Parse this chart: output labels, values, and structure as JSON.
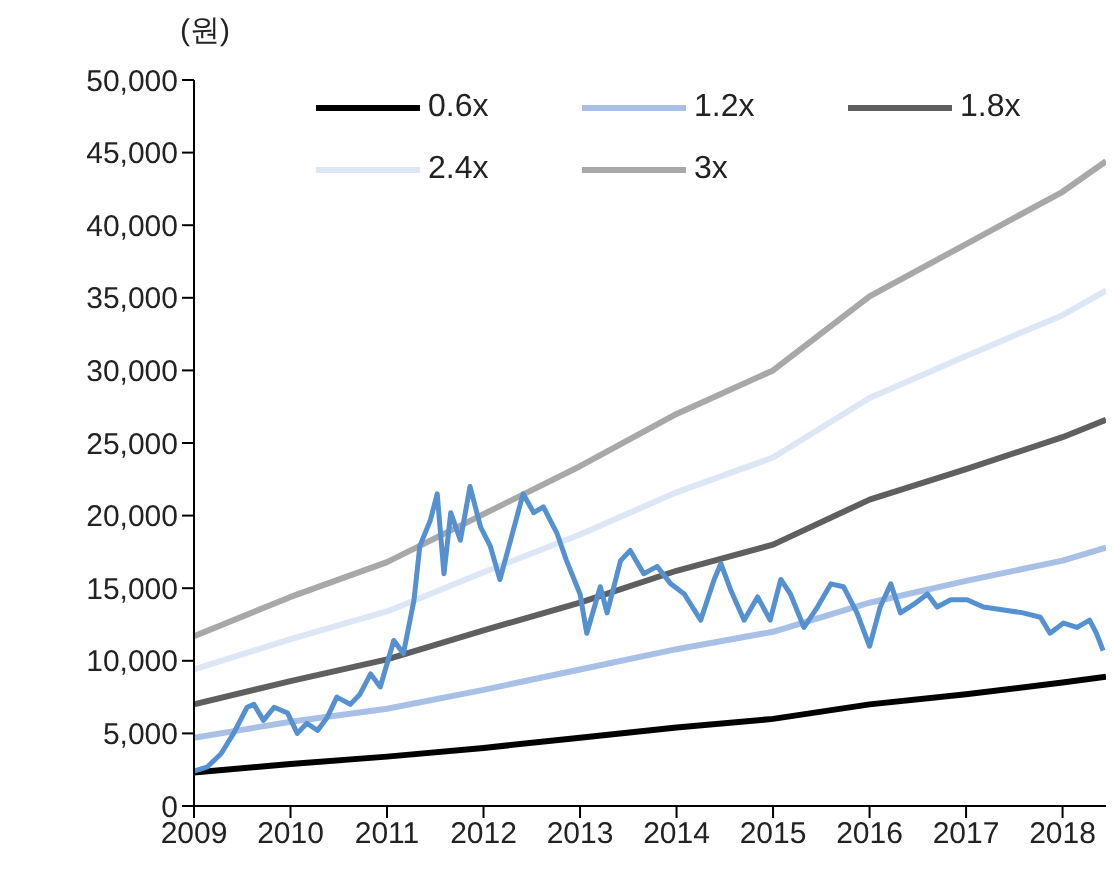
{
  "chart_data": {
    "type": "line",
    "ylabel": "(원)",
    "xlim": [
      2009,
      2018.45
    ],
    "xticks": [
      2009,
      2010,
      2011,
      2012,
      2013,
      2014,
      2015,
      2016,
      2017,
      2018
    ],
    "ylim": [
      0,
      50000
    ],
    "yticks": [
      {
        "value": 0,
        "label": "0"
      },
      {
        "value": 5000,
        "label": "5,000"
      },
      {
        "value": 10000,
        "label": "10,000"
      },
      {
        "value": 15000,
        "label": "15,000"
      },
      {
        "value": 20000,
        "label": "20,000"
      },
      {
        "value": 25000,
        "label": "25,000"
      },
      {
        "value": 30000,
        "label": "30,000"
      },
      {
        "value": 35000,
        "label": "35,000"
      },
      {
        "value": 40000,
        "label": "40,000"
      },
      {
        "value": 45000,
        "label": "45,000"
      },
      {
        "value": 50000,
        "label": "50,000"
      }
    ],
    "grid": false,
    "legend": "top right",
    "marker": "none",
    "x": [
      2009,
      2010,
      2011,
      2012,
      2013,
      2014,
      2015,
      2016,
      2017,
      2018,
      2018.45
    ],
    "series": [
      {
        "name": "0.6x",
        "color": "#000000",
        "values": [
          2300,
          2900,
          3400,
          4000,
          4700,
          5400,
          6000,
          7000,
          7700,
          8500,
          8900
        ]
      },
      {
        "name": "1.2x",
        "color": "#a9c0e6",
        "values": [
          4700,
          5800,
          6700,
          8000,
          9400,
          10800,
          12000,
          14000,
          15500,
          16900,
          17800
        ]
      },
      {
        "name": "1.8x",
        "color": "#5f5f5f",
        "values": [
          7000,
          8600,
          10100,
          12100,
          14000,
          16200,
          18000,
          21100,
          23200,
          25400,
          26600
        ]
      },
      {
        "name": "2.4x",
        "color": "#dce6f5",
        "values": [
          9400,
          11500,
          13400,
          16100,
          18700,
          21600,
          24000,
          28100,
          31000,
          33800,
          35500
        ]
      },
      {
        "name": "3x",
        "color": "#a8a8a8",
        "values": [
          11700,
          14400,
          16800,
          20100,
          23400,
          27000,
          30000,
          35100,
          38700,
          42300,
          44400
        ]
      },
      {
        "color": "#5590d0",
        "x": [
          2009,
          2009.14,
          2009.28,
          2009.41,
          2009.55,
          2009.62,
          2009.72,
          2009.83,
          2009.97,
          2010.07,
          2010.17,
          2010.28,
          2010.38,
          2010.48,
          2010.62,
          2010.72,
          2010.83,
          2010.93,
          2011.07,
          2011.17,
          2011.28,
          2011.34,
          2011.45,
          2011.52,
          2011.59,
          2011.66,
          2011.76,
          2011.86,
          2011.97,
          2012.07,
          2012.17,
          2012.28,
          2012.41,
          2012.52,
          2012.62,
          2012.76,
          2012.86,
          2013,
          2013.07,
          2013.21,
          2013.28,
          2013.42,
          2013.52,
          2013.66,
          2013.8,
          2013.94,
          2014.08,
          2014.25,
          2014.39,
          2014.46,
          2014.56,
          2014.7,
          2014.84,
          2014.97,
          2015.08,
          2015.18,
          2015.32,
          2015.46,
          2015.6,
          2015.73,
          2015.87,
          2016,
          2016.11,
          2016.22,
          2016.32,
          2016.46,
          2016.6,
          2016.7,
          2016.84,
          2017.01,
          2017.18,
          2017.39,
          2017.59,
          2017.77,
          2017.87,
          2018.01,
          2018.15,
          2018.28,
          2018.35,
          2018.42
        ],
        "values": [
          2400,
          2700,
          3600,
          5000,
          6800,
          7000,
          5900,
          6800,
          6400,
          5000,
          5700,
          5200,
          6100,
          7500,
          7000,
          7700,
          9100,
          8200,
          11400,
          10500,
          14200,
          17900,
          19700,
          21500,
          16000,
          20200,
          18300,
          22000,
          19200,
          17900,
          15600,
          18300,
          21500,
          20200,
          20600,
          18800,
          16900,
          14600,
          11900,
          15100,
          13300,
          16900,
          17600,
          16000,
          16500,
          15300,
          14600,
          12800,
          15600,
          16700,
          14900,
          12800,
          14400,
          12800,
          15600,
          14600,
          12300,
          13700,
          15300,
          15100,
          13300,
          11000,
          13700,
          15300,
          13300,
          13900,
          14600,
          13700,
          14200,
          14200,
          13700,
          13500,
          13300,
          13000,
          11900,
          12600,
          12300,
          12800,
          11900,
          10700
        ]
      }
    ]
  }
}
